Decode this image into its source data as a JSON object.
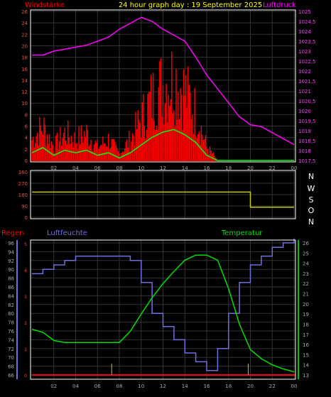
{
  "header": {
    "left_label": "Windstärke",
    "title": "24 hour graph day : 19 September 2025",
    "right_label": "Luftdruck"
  },
  "lower_header": {
    "left_label": "Regen",
    "middle_label": "Luftfeuchte",
    "right_label": "Temperatur"
  },
  "colors": {
    "background": "#000000",
    "wind": "#ff0000",
    "wind_gust": "#ff0000",
    "wind_avg": "#00ff00",
    "pressure": "#ff00ff",
    "direction": "#c8c800",
    "humidity": "#6f6fe0",
    "temperature": "#00e000",
    "rain": "#ff0000",
    "rain_marker": "#c8c800",
    "axis_left_top": "#ff0000",
    "axis_right_top": "#ff00ff",
    "axis_text": "#aaaaaa"
  },
  "x_ticks": [
    "02",
    "04",
    "06",
    "08",
    "10",
    "12",
    "14",
    "16",
    "18",
    "20",
    "22",
    "00"
  ],
  "chart_data": [
    {
      "type": "line",
      "title": "24 hour graph day : 19 September 2025",
      "x": [
        0,
        1,
        2,
        3,
        4,
        5,
        6,
        7,
        8,
        9,
        10,
        11,
        12,
        13,
        14,
        15,
        16,
        17,
        18,
        19,
        20,
        21,
        22,
        23,
        24
      ],
      "series": [
        {
          "name": "Windstärke",
          "axis": "left",
          "values": [
            3,
            5,
            2,
            4,
            3,
            4,
            2,
            3,
            1,
            3,
            6,
            9,
            11,
            12,
            10,
            7,
            2,
            0,
            0,
            0,
            0,
            0,
            0,
            0,
            0
          ]
        },
        {
          "name": "Luftdruck",
          "axis": "right",
          "values": [
            1022.8,
            1022.8,
            1023.0,
            1023.1,
            1023.2,
            1023.3,
            1023.5,
            1023.7,
            1024.1,
            1024.4,
            1024.7,
            1024.5,
            1024.1,
            1023.8,
            1023.5,
            1022.7,
            1021.8,
            1021.1,
            1020.4,
            1019.7,
            1019.3,
            1019.2,
            1018.9,
            1018.6,
            1018.3
          ]
        }
      ],
      "ylim_left": [
        0,
        26
      ],
      "yticks_left": [
        0,
        2,
        4,
        6,
        8,
        10,
        12,
        14,
        16,
        18,
        20,
        22,
        24,
        26
      ],
      "ylim_right": [
        1017.5,
        1025
      ],
      "yticks_right": [
        "1017,5",
        "1018",
        "1018,5",
        "1019",
        "1019,5",
        "1020",
        "1020,5",
        "1021",
        "1021,5",
        "1022",
        "1022,5",
        "1023",
        "1023,5",
        "1024",
        "1024,5",
        "1025"
      ]
    },
    {
      "type": "line",
      "x": [
        0,
        1,
        2,
        3,
        4,
        5,
        6,
        7,
        8,
        9,
        10,
        11,
        12,
        13,
        14,
        15,
        16,
        17,
        18,
        19,
        20,
        21,
        22,
        23,
        24
      ],
      "series": [
        {
          "name": "direction",
          "values": [
            200,
            200,
            200,
            200,
            200,
            200,
            200,
            200,
            200,
            200,
            200,
            200,
            200,
            200,
            200,
            200,
            200,
            200,
            200,
            200,
            80,
            80,
            80,
            80,
            80
          ]
        }
      ],
      "ylim": [
        0,
        360
      ],
      "yticks": [
        0,
        90,
        180,
        270,
        360
      ],
      "compass_labels": [
        "N",
        "W",
        "S",
        "O",
        "N"
      ]
    },
    {
      "type": "line",
      "x": [
        0,
        1,
        2,
        3,
        4,
        5,
        6,
        7,
        8,
        9,
        10,
        11,
        12,
        13,
        14,
        15,
        16,
        17,
        18,
        19,
        20,
        21,
        22,
        23,
        24
      ],
      "series": [
        {
          "name": "Luftfeuchte",
          "axis": "left",
          "values": [
            89,
            90,
            91,
            92,
            93,
            93,
            93,
            93,
            93,
            92,
            87,
            80,
            77,
            74,
            71,
            69,
            67,
            72,
            80,
            87,
            91,
            93,
            95,
            96,
            97
          ]
        },
        {
          "name": "Temperatur",
          "axis": "right",
          "values": [
            17.5,
            17.2,
            16.4,
            16.2,
            16.2,
            16.2,
            16.2,
            16.2,
            16.2,
            17.3,
            19.0,
            20.6,
            22.0,
            23.2,
            24.3,
            24.8,
            24.8,
            24.3,
            21.5,
            18.0,
            15.5,
            14.6,
            14.0,
            13.6,
            13.3
          ]
        },
        {
          "name": "Regen",
          "axis": "rain",
          "values": [
            0,
            0,
            0,
            0,
            0,
            0,
            0,
            0,
            0,
            0,
            0,
            0,
            0,
            0,
            0,
            0,
            0,
            0,
            0,
            0,
            0,
            0,
            0,
            0,
            0
          ]
        }
      ],
      "ylim_left": [
        66,
        96
      ],
      "yticks_left": [
        66,
        68,
        70,
        72,
        74,
        76,
        78,
        80,
        82,
        84,
        86,
        88,
        90,
        92,
        94,
        96
      ],
      "ylim_right": [
        13,
        26
      ],
      "yticks_right": [
        13,
        14,
        15,
        16,
        17,
        18,
        19,
        20,
        21,
        22,
        23,
        24,
        25,
        26
      ],
      "rain_ticks": [
        0,
        1,
        2,
        3,
        4,
        5
      ],
      "rain_markers_x": [
        7.3,
        19.8
      ]
    }
  ]
}
